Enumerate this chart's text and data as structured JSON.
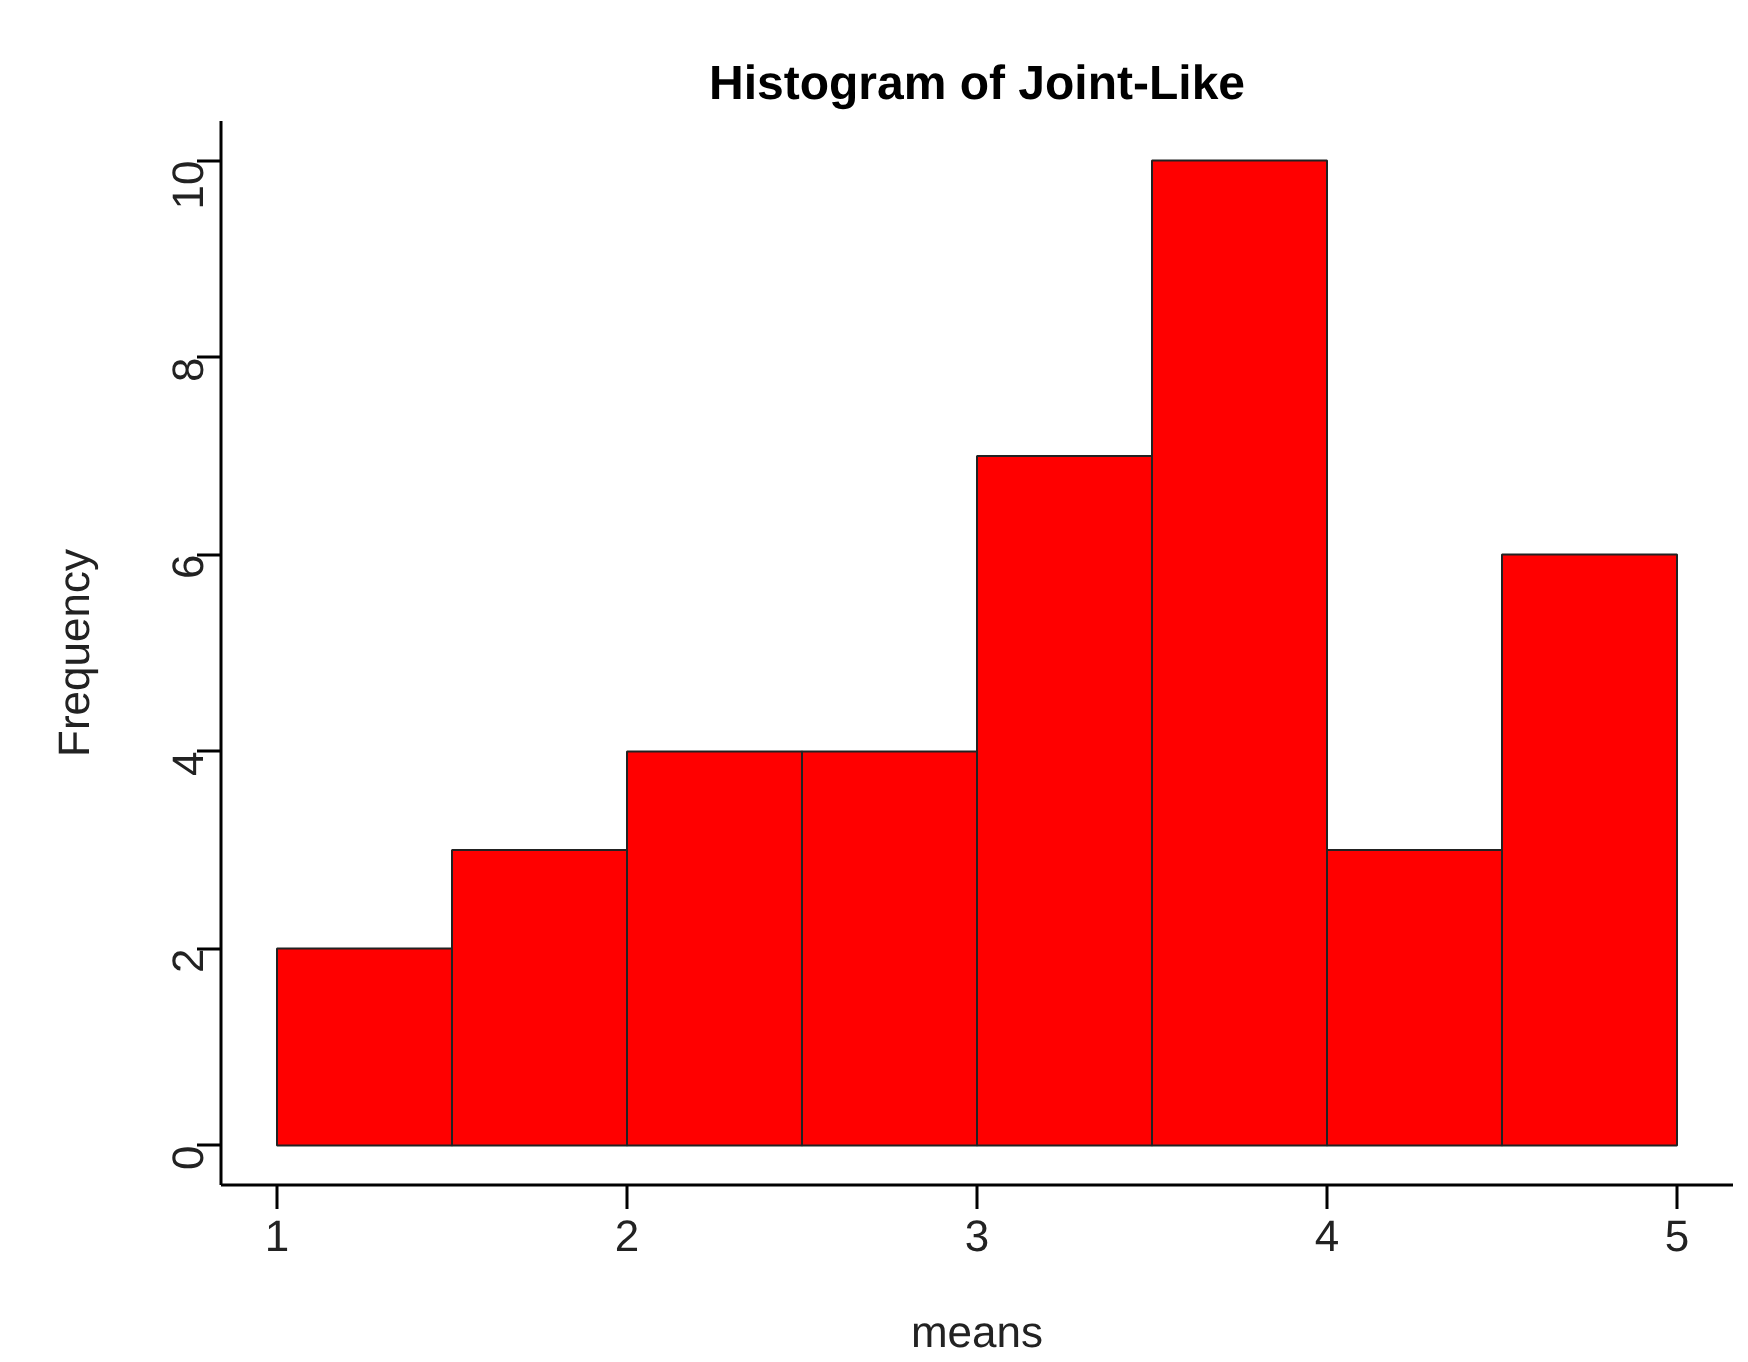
{
  "chart_data": {
    "type": "histogram",
    "title": "Histogram of Joint-Like",
    "xlabel": "means",
    "ylabel": "Frequency",
    "bins": [
      1,
      1.5,
      2,
      2.5,
      3,
      3.5,
      4,
      4.5,
      5
    ],
    "values": [
      2,
      3,
      4,
      4,
      7,
      10,
      3,
      6
    ],
    "color": "#ff0000",
    "xlim": [
      0.84,
      5.16
    ],
    "ylim": [
      -0.4,
      10.4
    ],
    "xticks": [
      1,
      2,
      3,
      4,
      5
    ],
    "yticks": [
      0,
      2,
      4,
      6,
      8,
      10
    ]
  }
}
